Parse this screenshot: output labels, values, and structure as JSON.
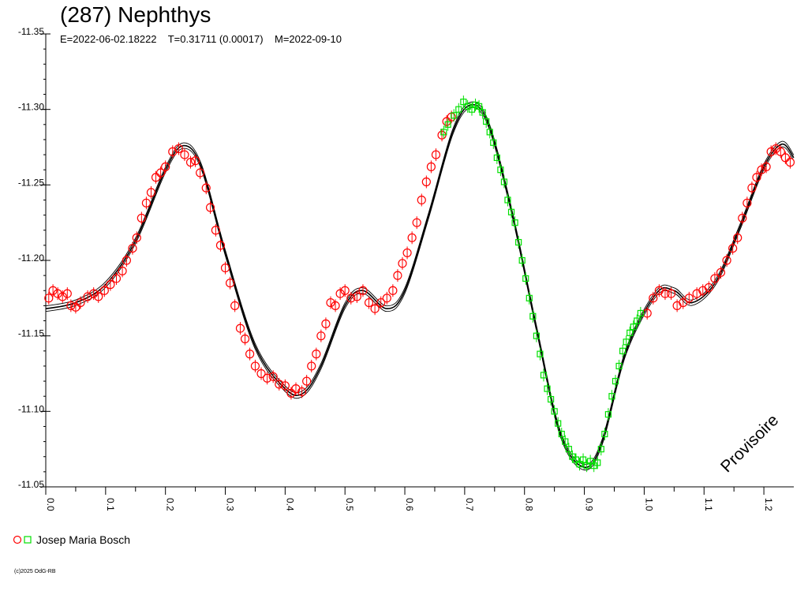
{
  "header": {
    "title": "(287) Nephthys",
    "subtitle": "E=2022-06-02.18222    T=0.31711 (0.00017)    M=2022-09-10"
  },
  "legend": {
    "label": "Josep Maria Bosch"
  },
  "copyright": "(c)2025 OdG-RB",
  "watermark": "Provisoire",
  "colors": {
    "series_red": "#ff0000",
    "series_green": "#00e000",
    "curve": "#000000"
  },
  "chart_data": {
    "type": "scatter",
    "xlim": [
      0.0,
      1.25
    ],
    "ylim": [
      -11.35,
      -11.05
    ],
    "y_reversed": true,
    "x_ticks": [
      "0.0",
      "0.1",
      "0.2",
      "0.3",
      "0.4",
      "0.5",
      "0.6",
      "0.7",
      "0.8",
      "0.9",
      "1.0",
      "1.1",
      "1.2"
    ],
    "y_ticks": [
      "-11.35",
      "-11.30",
      "-11.25",
      "-11.20",
      "-11.15",
      "-11.10",
      "-11.05"
    ],
    "fit_curve": [
      [
        0.0,
        -11.168
      ],
      [
        0.05,
        -11.172
      ],
      [
        0.1,
        -11.184
      ],
      [
        0.15,
        -11.213
      ],
      [
        0.2,
        -11.26
      ],
      [
        0.23,
        -11.276
      ],
      [
        0.26,
        -11.262
      ],
      [
        0.3,
        -11.205
      ],
      [
        0.35,
        -11.143
      ],
      [
        0.4,
        -11.115
      ],
      [
        0.43,
        -11.112
      ],
      [
        0.46,
        -11.13
      ],
      [
        0.5,
        -11.17
      ],
      [
        0.53,
        -11.18
      ],
      [
        0.57,
        -11.168
      ],
      [
        0.6,
        -11.18
      ],
      [
        0.64,
        -11.23
      ],
      [
        0.68,
        -11.285
      ],
      [
        0.71,
        -11.303
      ],
      [
        0.74,
        -11.29
      ],
      [
        0.78,
        -11.23
      ],
      [
        0.82,
        -11.155
      ],
      [
        0.86,
        -11.085
      ],
      [
        0.9,
        -11.063
      ],
      [
        0.93,
        -11.08
      ],
      [
        0.97,
        -11.14
      ],
      [
        1.02,
        -11.178
      ],
      [
        1.05,
        -11.18
      ],
      [
        1.08,
        -11.172
      ],
      [
        1.12,
        -11.186
      ],
      [
        1.16,
        -11.222
      ],
      [
        1.2,
        -11.262
      ],
      [
        1.23,
        -11.277
      ],
      [
        1.25,
        -11.268
      ]
    ],
    "series": [
      {
        "name": "Josep Maria Bosch",
        "marker": "circle",
        "points": [
          [
            0.005,
            -11.175
          ],
          [
            0.012,
            -11.18
          ],
          [
            0.02,
            -11.178
          ],
          [
            0.028,
            -11.176
          ],
          [
            0.036,
            -11.178
          ],
          [
            0.042,
            -11.17
          ],
          [
            0.05,
            -11.169
          ],
          [
            0.058,
            -11.172
          ],
          [
            0.07,
            -11.176
          ],
          [
            0.08,
            -11.178
          ],
          [
            0.088,
            -11.176
          ],
          [
            0.098,
            -11.18
          ],
          [
            0.108,
            -11.184
          ],
          [
            0.118,
            -11.188
          ],
          [
            0.128,
            -11.193
          ],
          [
            0.135,
            -11.2
          ],
          [
            0.145,
            -11.208
          ],
          [
            0.152,
            -11.215
          ],
          [
            0.16,
            -11.228
          ],
          [
            0.168,
            -11.238
          ],
          [
            0.176,
            -11.245
          ],
          [
            0.184,
            -11.255
          ],
          [
            0.192,
            -11.258
          ],
          [
            0.2,
            -11.262
          ],
          [
            0.212,
            -11.272
          ],
          [
            0.222,
            -11.274
          ],
          [
            0.232,
            -11.27
          ],
          [
            0.242,
            -11.265
          ],
          [
            0.25,
            -11.266
          ],
          [
            0.258,
            -11.258
          ],
          [
            0.268,
            -11.248
          ],
          [
            0.275,
            -11.235
          ],
          [
            0.284,
            -11.22
          ],
          [
            0.292,
            -11.21
          ],
          [
            0.3,
            -11.195
          ],
          [
            0.308,
            -11.185
          ],
          [
            0.316,
            -11.17
          ],
          [
            0.325,
            -11.155
          ],
          [
            0.333,
            -11.148
          ],
          [
            0.341,
            -11.138
          ],
          [
            0.35,
            -11.13
          ],
          [
            0.36,
            -11.125
          ],
          [
            0.37,
            -11.122
          ],
          [
            0.38,
            -11.123
          ],
          [
            0.39,
            -11.118
          ],
          [
            0.4,
            -11.117
          ],
          [
            0.41,
            -11.112
          ],
          [
            0.418,
            -11.115
          ],
          [
            0.428,
            -11.113
          ],
          [
            0.436,
            -11.12
          ],
          [
            0.444,
            -11.13
          ],
          [
            0.452,
            -11.138
          ],
          [
            0.46,
            -11.15
          ],
          [
            0.468,
            -11.158
          ],
          [
            0.476,
            -11.172
          ],
          [
            0.484,
            -11.17
          ],
          [
            0.492,
            -11.178
          ],
          [
            0.5,
            -11.18
          ],
          [
            0.51,
            -11.175
          ],
          [
            0.52,
            -11.176
          ],
          [
            0.53,
            -11.18
          ],
          [
            0.54,
            -11.172
          ],
          [
            0.55,
            -11.168
          ],
          [
            0.56,
            -11.172
          ],
          [
            0.57,
            -11.175
          ],
          [
            0.58,
            -11.18
          ],
          [
            0.588,
            -11.19
          ],
          [
            0.596,
            -11.198
          ],
          [
            0.604,
            -11.205
          ],
          [
            0.612,
            -11.215
          ],
          [
            0.62,
            -11.225
          ],
          [
            0.628,
            -11.24
          ],
          [
            0.636,
            -11.252
          ],
          [
            0.644,
            -11.262
          ],
          [
            0.652,
            -11.27
          ],
          [
            0.662,
            -11.283
          ],
          [
            0.67,
            -11.292
          ],
          [
            0.678,
            -11.295
          ],
          [
            1.005,
            -11.165
          ],
          [
            1.015,
            -11.175
          ],
          [
            1.025,
            -11.18
          ],
          [
            1.035,
            -11.178
          ],
          [
            1.045,
            -11.178
          ],
          [
            1.055,
            -11.17
          ],
          [
            1.065,
            -11.172
          ],
          [
            1.075,
            -11.175
          ],
          [
            1.088,
            -11.178
          ],
          [
            1.098,
            -11.18
          ],
          [
            1.108,
            -11.182
          ],
          [
            1.118,
            -11.188
          ],
          [
            1.128,
            -11.192
          ],
          [
            1.138,
            -11.2
          ],
          [
            1.148,
            -11.208
          ],
          [
            1.156,
            -11.215
          ],
          [
            1.164,
            -11.228
          ],
          [
            1.172,
            -11.238
          ],
          [
            1.18,
            -11.248
          ],
          [
            1.188,
            -11.255
          ],
          [
            1.196,
            -11.26
          ],
          [
            1.204,
            -11.262
          ],
          [
            1.212,
            -11.272
          ],
          [
            1.22,
            -11.274
          ],
          [
            1.228,
            -11.272
          ],
          [
            1.236,
            -11.268
          ],
          [
            1.244,
            -11.265
          ]
        ]
      },
      {
        "name": "Josep Maria Bosch",
        "marker": "square",
        "points": [
          [
            0.665,
            -11.285
          ],
          [
            0.672,
            -11.29
          ],
          [
            0.682,
            -11.296
          ],
          [
            0.69,
            -11.3
          ],
          [
            0.698,
            -11.305
          ],
          [
            0.705,
            -11.302
          ],
          [
            0.712,
            -11.3
          ],
          [
            0.718,
            -11.303
          ],
          [
            0.724,
            -11.302
          ],
          [
            0.73,
            -11.298
          ],
          [
            0.736,
            -11.292
          ],
          [
            0.742,
            -11.285
          ],
          [
            0.748,
            -11.278
          ],
          [
            0.754,
            -11.268
          ],
          [
            0.76,
            -11.26
          ],
          [
            0.766,
            -11.252
          ],
          [
            0.772,
            -11.24
          ],
          [
            0.778,
            -11.232
          ],
          [
            0.784,
            -11.225
          ],
          [
            0.79,
            -11.212
          ],
          [
            0.796,
            -11.2
          ],
          [
            0.802,
            -11.188
          ],
          [
            0.808,
            -11.175
          ],
          [
            0.814,
            -11.163
          ],
          [
            0.82,
            -11.15
          ],
          [
            0.826,
            -11.138
          ],
          [
            0.832,
            -11.124
          ],
          [
            0.838,
            -11.115
          ],
          [
            0.844,
            -11.108
          ],
          [
            0.85,
            -11.1
          ],
          [
            0.856,
            -11.092
          ],
          [
            0.862,
            -11.085
          ],
          [
            0.868,
            -11.08
          ],
          [
            0.874,
            -11.075
          ],
          [
            0.88,
            -11.07
          ],
          [
            0.886,
            -11.068
          ],
          [
            0.892,
            -11.065
          ],
          [
            0.898,
            -11.068
          ],
          [
            0.904,
            -11.064
          ],
          [
            0.91,
            -11.067
          ],
          [
            0.916,
            -11.064
          ],
          [
            0.922,
            -11.066
          ],
          [
            0.928,
            -11.075
          ],
          [
            0.934,
            -11.085
          ],
          [
            0.94,
            -11.098
          ],
          [
            0.946,
            -11.11
          ],
          [
            0.952,
            -11.12
          ],
          [
            0.958,
            -11.13
          ],
          [
            0.964,
            -11.14
          ],
          [
            0.97,
            -11.146
          ],
          [
            0.976,
            -11.152
          ],
          [
            0.982,
            -11.156
          ],
          [
            0.988,
            -11.16
          ],
          [
            0.994,
            -11.165
          ]
        ]
      }
    ]
  }
}
